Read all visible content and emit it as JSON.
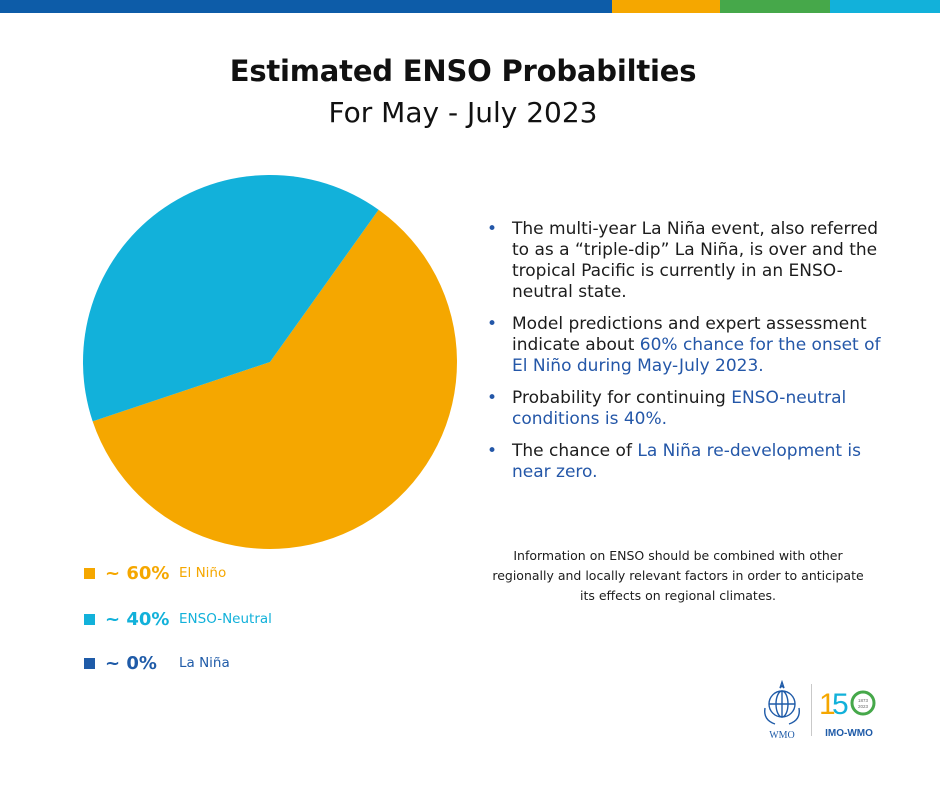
{
  "colors": {
    "el_nino": "#F5A700",
    "enso_neutral": "#12B1DA",
    "la_nina": "#1F5BA8",
    "topbar": [
      "#0D5CA8",
      "#F5A700",
      "#46A84A",
      "#12B1DA"
    ]
  },
  "chart_data": {
    "type": "pie",
    "title": "Estimated ENSO Probabilties",
    "subtitle": "For May - July 2023",
    "categories": [
      "El Niño",
      "ENSO-Neutral",
      "La Niña"
    ],
    "values": [
      60,
      40,
      0
    ],
    "legend": [
      {
        "label": "~ 60%",
        "name": "El Niño",
        "value": 60
      },
      {
        "label": "~ 40%",
        "name": "ENSO-Neutral",
        "value": 40
      },
      {
        "label": "~ 0%",
        "name": "La Niña",
        "value": 0
      }
    ],
    "legend_position": "bottom-left"
  },
  "bullets": [
    {
      "text": "The multi-year La Niña event, also referred to as a “triple-dip” La Niña, is over and the tropical Pacific is currently in an ENSO-neutral state.",
      "highlight": ""
    },
    {
      "text": "Model predictions and expert assessment indicate about ",
      "highlight": "60% chance for the onset of El Niño during May-July 2023."
    },
    {
      "text": "Probability for continuing ",
      "highlight": "ENSO-neutral conditions is 40%."
    },
    {
      "text": "The chance of ",
      "highlight": "La Niña re-development is near zero."
    }
  ],
  "note": "Information on ENSO should be combined with other regionally and locally relevant factors in order to anticipate its effects on regional climates.",
  "logos": {
    "wmo_text": "WMO",
    "anniversary_digits": [
      "1",
      "5"
    ],
    "anniversary_years": [
      "1873",
      "2023"
    ],
    "anniversary_text": "IMO-WMO"
  }
}
